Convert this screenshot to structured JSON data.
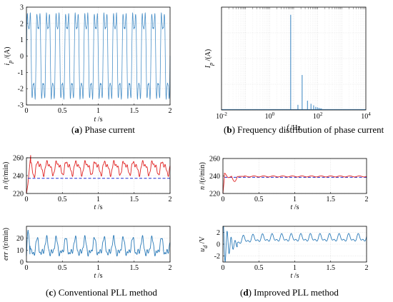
{
  "captions": {
    "a": {
      "letter": "a",
      "text": "Phase current"
    },
    "b": {
      "letter": "b",
      "text": "Frequency distribution of phase current"
    },
    "c": {
      "letter": "c",
      "text": "Conventional PLL method"
    },
    "d": {
      "letter": "d",
      "text": "Improved PLL method"
    }
  },
  "chart_data": [
    {
      "id": "a",
      "type": "line",
      "xlabel": "t",
      "xunit": " /s",
      "ylabel": "i",
      "ysub": "p",
      "yunit": " /(A)",
      "xlim": [
        0,
        2
      ],
      "ylim": [
        -3,
        3
      ],
      "xticks": [
        "0",
        "0.5",
        "1",
        "1.5",
        "2"
      ],
      "yticks": [
        "3",
        "2",
        "1",
        "0",
        "-1",
        "-2",
        "-3"
      ],
      "grid": true,
      "series": [
        {
          "color": "#4a90c8",
          "signal": "phase current (quasi-square wave)",
          "frequency_hz": 7.5,
          "amplitude": 2.9
        }
      ]
    },
    {
      "id": "b",
      "type": "bar",
      "xscale": "log",
      "xlabel": "f",
      "xunit": " /Hz",
      "ylabel": "I",
      "ysub": "p",
      "yunit": " /(A)",
      "xlim": [
        0.01,
        10000
      ],
      "ylim": [
        0,
        2
      ],
      "xticks": [
        {
          "base": "10",
          "exp": "-2"
        },
        {
          "base": "10",
          "exp": "0"
        },
        {
          "base": "10",
          "exp": "2"
        },
        {
          "base": "10",
          "exp": "4"
        }
      ],
      "grid": true,
      "spikes": [
        {
          "f": 7.5,
          "v": 1.85
        },
        {
          "f": 22.5,
          "v": 0.68
        },
        {
          "f": 15,
          "v": 0.1
        },
        {
          "f": 37.5,
          "v": 0.18
        },
        {
          "f": 52.5,
          "v": 0.12
        },
        {
          "f": 67.5,
          "v": 0.09
        },
        {
          "f": 82.5,
          "v": 0.06
        },
        {
          "f": 97.5,
          "v": 0.05
        },
        {
          "f": 112.5,
          "v": 0.04
        },
        {
          "f": 127.5,
          "v": 0.03
        },
        {
          "f": 142.5,
          "v": 0.03
        }
      ],
      "series": [
        {
          "color": "#4a90c8"
        }
      ]
    },
    {
      "id": "c1",
      "type": "line",
      "xlabel": "t",
      "xunit": " /s",
      "ylabel": "n",
      "yunit": " /(r/min)",
      "xlim": [
        0,
        2
      ],
      "ylim": [
        220,
        260
      ],
      "xticks": [
        "0",
        "0.5",
        "1",
        "1.5",
        "2"
      ],
      "yticks": [
        "260",
        "240",
        "220"
      ],
      "grid": true,
      "series": [
        {
          "color": "#e02020",
          "style": "solid",
          "mean": 249,
          "ripple": 6
        },
        {
          "color": "#2030d0",
          "style": "dashed",
          "constant": 237
        }
      ]
    },
    {
      "id": "c2",
      "type": "line",
      "xlabel": "t",
      "xunit": " /s",
      "ylabel": "err",
      "yunit": " /(r/min)",
      "xlim": [
        0,
        2
      ],
      "ylim": [
        0,
        30
      ],
      "xticks": [
        "0",
        "0.5",
        "1",
        "1.5",
        "2"
      ],
      "yticks": [
        "20",
        "10",
        "0"
      ],
      "grid": true,
      "series": [
        {
          "color": "#2a7ab8",
          "style": "solid",
          "mean": 12,
          "ripple": 6
        }
      ]
    },
    {
      "id": "d1",
      "type": "line",
      "xlabel": "t",
      "xunit": " /s",
      "ylabel": "n",
      "yunit": " /(r/min)",
      "xlim": [
        0,
        2
      ],
      "ylim": [
        220,
        260
      ],
      "xticks": [
        "0",
        "0.5",
        "1",
        "1.5",
        "2"
      ],
      "yticks": [
        "260",
        "240",
        "220"
      ],
      "grid": true,
      "series": [
        {
          "color": "#e02020",
          "style": "solid",
          "mean": 239.5
        },
        {
          "color": "#2030d0",
          "style": "dashed",
          "constant": 238.5
        }
      ]
    },
    {
      "id": "d2",
      "type": "line",
      "xlabel": "t",
      "xunit": " /s",
      "ylabel": "u",
      "ysub": "d",
      "yunit": " /V",
      "xlim": [
        0,
        2
      ],
      "ylim": [
        -3,
        3
      ],
      "xticks": [
        "0",
        "0.5",
        "1",
        "1.5",
        "2"
      ],
      "yticks": [
        "2",
        "0",
        "-2"
      ],
      "grid": true,
      "series": [
        {
          "color": "#2a7ab8",
          "style": "solid",
          "mean": 1.0
        }
      ]
    }
  ]
}
